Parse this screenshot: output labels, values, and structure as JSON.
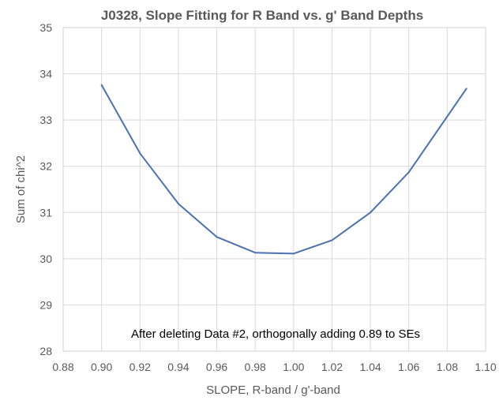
{
  "chart_data": {
    "type": "line",
    "title": "J0328, Slope Fitting for R Band vs. g' Band Depths",
    "xlabel": "SLOPE, R-band / g'-band",
    "ylabel": "Sum of chi^2",
    "xlim": [
      0.88,
      1.1
    ],
    "ylim": [
      28,
      35
    ],
    "x_ticks": [
      "0.88",
      "0.90",
      "0.92",
      "0.94",
      "0.96",
      "0.98",
      "1.00",
      "1.02",
      "1.04",
      "1.06",
      "1.08",
      "1.10"
    ],
    "y_ticks": [
      "28",
      "29",
      "30",
      "31",
      "32",
      "33",
      "34",
      "35"
    ],
    "grid": true,
    "legend": "none",
    "annotation": "After deleting Data #2, orthogonally adding 0.89 to SEs",
    "series": [
      {
        "color": "#4a72b0",
        "x": [
          0.9,
          0.92,
          0.94,
          0.96,
          0.98,
          1.0,
          1.02,
          1.04,
          1.06,
          1.09
        ],
        "y": [
          33.76,
          32.28,
          31.19,
          30.47,
          30.13,
          30.11,
          30.4,
          31.0,
          31.87,
          33.68
        ]
      }
    ]
  }
}
